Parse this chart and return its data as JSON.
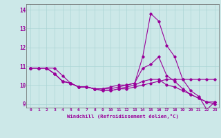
{
  "xlabel": "Windchill (Refroidissement éolien,°C)",
  "ylabel": "",
  "background_color": "#cce8e8",
  "line_color": "#990099",
  "xlim": [
    -0.5,
    23.5
  ],
  "ylim": [
    8.8,
    14.3
  ],
  "yticks": [
    9,
    10,
    11,
    12,
    13,
    14
  ],
  "xticks": [
    0,
    1,
    2,
    3,
    4,
    5,
    6,
    7,
    8,
    9,
    10,
    11,
    12,
    13,
    14,
    15,
    16,
    17,
    18,
    19,
    20,
    21,
    22,
    23
  ],
  "series": [
    [
      10.9,
      10.9,
      10.9,
      10.9,
      10.5,
      10.1,
      9.9,
      9.9,
      9.8,
      9.8,
      9.9,
      10.0,
      10.0,
      10.1,
      11.5,
      13.8,
      13.4,
      12.1,
      11.5,
      10.3,
      9.7,
      9.4,
      8.7,
      9.1
    ],
    [
      10.9,
      10.9,
      10.9,
      10.6,
      10.2,
      10.1,
      9.9,
      9.9,
      9.8,
      9.8,
      9.8,
      9.9,
      10.0,
      10.1,
      10.9,
      11.1,
      11.5,
      10.5,
      10.2,
      9.8,
      9.5,
      9.3,
      9.1,
      9.1
    ],
    [
      10.9,
      10.9,
      10.9,
      10.6,
      10.2,
      10.1,
      9.9,
      9.9,
      9.8,
      9.7,
      9.7,
      9.8,
      9.9,
      10.0,
      10.2,
      10.3,
      10.3,
      10.0,
      9.9,
      9.7,
      9.5,
      9.3,
      9.1,
      9.0
    ],
    [
      10.9,
      10.9,
      10.9,
      10.6,
      10.2,
      10.1,
      9.9,
      9.9,
      9.8,
      9.7,
      9.7,
      9.8,
      9.8,
      9.9,
      10.0,
      10.1,
      10.2,
      10.3,
      10.3,
      10.3,
      10.3,
      10.3,
      10.3,
      10.3
    ]
  ]
}
